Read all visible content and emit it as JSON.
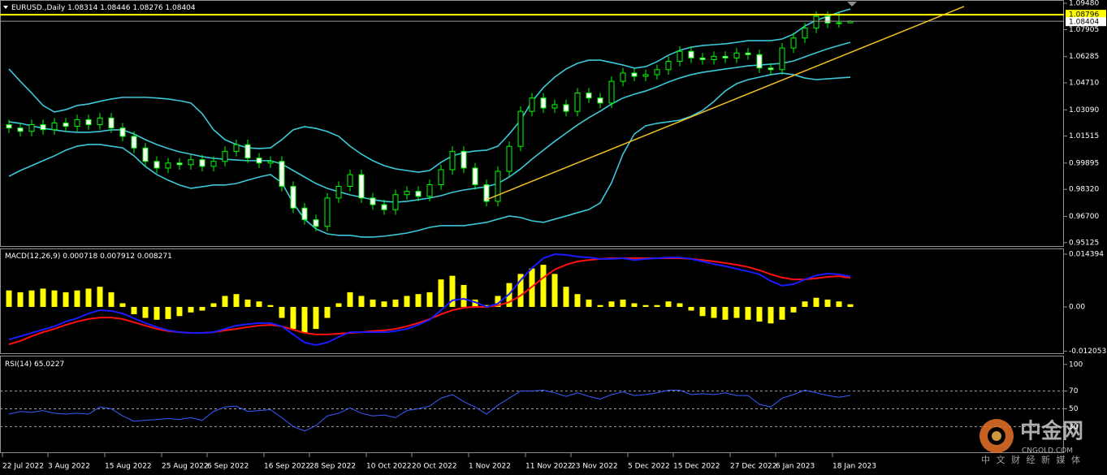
{
  "chart_data": {
    "type": "candlestick",
    "title": "EURUSD.,Daily",
    "categories": [
      "22 Jul 2022",
      null,
      null,
      null,
      "3 Aug 2022",
      null,
      null,
      null,
      null,
      "15 Aug 2022",
      null,
      null,
      null,
      null,
      "25 Aug 2022",
      null,
      null,
      null,
      "6 Sep 2022",
      null,
      null,
      null,
      null,
      "16 Sep 2022",
      null,
      null,
      null,
      "28 Sep 2022",
      null,
      null,
      null,
      null,
      "10 Oct 2022",
      null,
      null,
      null,
      "20 Oct 2022",
      null,
      null,
      null,
      null,
      "1 Nov 2022",
      null,
      null,
      null,
      null,
      "11 Nov 2022",
      null,
      null,
      null,
      "23 Nov 2022",
      null,
      null,
      null,
      null,
      "5 Dec 2022",
      null,
      null,
      null,
      "15 Dec 2022",
      null,
      null,
      null,
      null,
      "27 Dec 2022",
      null,
      null,
      null,
      "6 Jan 2023",
      null,
      null,
      null,
      null,
      "18 Jan 2023",
      null
    ],
    "open": [
      1.022,
      1.02,
      1.018,
      1.022,
      1.019,
      1.023,
      1.021,
      1.025,
      1.022,
      1.026,
      1.02,
      1.015,
      1.008,
      1.0,
      0.996,
      0.999,
      0.998,
      1.001,
      0.997,
      1.0,
      1.006,
      1.01,
      1.002,
      0.999,
      1.0,
      0.985,
      0.972,
      0.965,
      0.961,
      0.978,
      0.985,
      0.992,
      0.978,
      0.974,
      0.971,
      0.98,
      0.982,
      0.979,
      0.986,
      0.995,
      1.006,
      0.996,
      0.986,
      0.976,
      0.994,
      1.009,
      1.03,
      1.038,
      1.032,
      1.034,
      1.03,
      1.041,
      1.038,
      1.035,
      1.048,
      1.053,
      1.051,
      1.052,
      1.055,
      1.06,
      1.066,
      1.062,
      1.061,
      1.063,
      1.062,
      1.065,
      1.064,
      1.056,
      1.055,
      1.068,
      1.074,
      1.08,
      1.087,
      1.083,
      1.08314
    ],
    "high": [
      1.025,
      1.023,
      1.025,
      1.025,
      1.026,
      1.026,
      1.028,
      1.028,
      1.029,
      1.029,
      1.023,
      1.018,
      1.011,
      1.003,
      1.002,
      1.002,
      1.004,
      1.004,
      1.003,
      1.009,
      1.013,
      1.013,
      1.005,
      1.003,
      1.003,
      0.988,
      0.975,
      0.968,
      0.981,
      0.988,
      0.995,
      0.995,
      0.981,
      0.977,
      0.983,
      0.985,
      0.985,
      0.989,
      0.998,
      1.009,
      1.009,
      0.999,
      0.989,
      0.997,
      1.012,
      1.033,
      1.041,
      1.041,
      1.037,
      1.037,
      1.044,
      1.044,
      1.041,
      1.051,
      1.056,
      1.056,
      1.055,
      1.058,
      1.063,
      1.069,
      1.069,
      1.065,
      1.066,
      1.066,
      1.068,
      1.068,
      1.067,
      1.059,
      1.071,
      1.077,
      1.083,
      1.09,
      1.09,
      1.09,
      1.08446
    ],
    "low": [
      1.017,
      1.015,
      1.015,
      1.016,
      1.016,
      1.018,
      1.018,
      1.019,
      1.019,
      1.017,
      1.012,
      1.005,
      0.997,
      0.993,
      0.993,
      0.995,
      0.995,
      0.994,
      0.994,
      0.997,
      1.003,
      0.999,
      0.996,
      0.996,
      0.982,
      0.969,
      0.962,
      0.958,
      0.958,
      0.975,
      0.982,
      0.975,
      0.971,
      0.968,
      0.968,
      0.977,
      0.976,
      0.976,
      0.983,
      0.992,
      0.993,
      0.983,
      0.973,
      0.973,
      0.991,
      1.006,
      1.027,
      1.029,
      1.029,
      1.027,
      1.027,
      1.035,
      1.032,
      1.032,
      1.045,
      1.048,
      1.048,
      1.049,
      1.052,
      1.057,
      1.059,
      1.058,
      1.058,
      1.059,
      1.059,
      1.061,
      1.053,
      1.052,
      1.052,
      1.065,
      1.071,
      1.077,
      1.08,
      1.08014,
      1.08276
    ],
    "close": [
      1.02,
      1.018,
      1.022,
      1.019,
      1.023,
      1.021,
      1.025,
      1.022,
      1.026,
      1.02,
      1.015,
      1.008,
      1.0,
      0.996,
      0.999,
      0.998,
      1.001,
      0.997,
      1.0,
      1.006,
      1.01,
      1.002,
      0.999,
      1.0,
      0.985,
      0.972,
      0.965,
      0.961,
      0.978,
      0.985,
      0.992,
      0.978,
      0.974,
      0.971,
      0.98,
      0.982,
      0.979,
      0.986,
      0.995,
      1.006,
      0.996,
      0.986,
      0.976,
      0.994,
      1.009,
      1.03,
      1.038,
      1.032,
      1.034,
      1.03,
      1.041,
      1.038,
      1.035,
      1.048,
      1.053,
      1.051,
      1.052,
      1.055,
      1.06,
      1.066,
      1.062,
      1.061,
      1.063,
      1.062,
      1.065,
      1.064,
      1.056,
      1.055,
      1.068,
      1.074,
      1.08,
      1.087,
      1.083,
      1.08314,
      1.08404
    ],
    "wick_color": "#00ff00",
    "up_color": "#000000",
    "down_color": "#ffffff",
    "bollinger": {
      "color": "#3cc8d8",
      "upper": [
        1.0554,
        1.048,
        1.041,
        1.0335,
        1.0296,
        1.031,
        1.0335,
        1.0344,
        1.036,
        1.0374,
        1.0384,
        1.0384,
        1.0384,
        1.038,
        1.0374,
        1.0364,
        1.035,
        1.0286,
        1.0189,
        1.013,
        1.0101,
        1.0081,
        1.0077,
        1.0081,
        1.013,
        1.0189,
        1.0208,
        1.0198,
        1.0179,
        1.015,
        1.0091,
        1.0043,
        1.0004,
        0.9974,
        0.9955,
        0.9945,
        0.9935,
        0.9945,
        0.9994,
        1.0033,
        1.0052,
        1.0062,
        1.0067,
        1.0091,
        1.0164,
        1.0247,
        1.0359,
        1.0442,
        1.0505,
        1.0554,
        1.0588,
        1.0607,
        1.0607,
        1.0593,
        1.0578,
        1.0559,
        1.0568,
        1.0598,
        1.0637,
        1.0666,
        1.0685,
        1.0695,
        1.07,
        1.0705,
        1.0714,
        1.0724,
        1.0724,
        1.0724,
        1.0734,
        1.0763,
        1.0812,
        1.0846,
        1.087,
        1.0894,
        1.0914
      ],
      "middle": [
        1.0237,
        1.0228,
        1.0213,
        1.0198,
        1.0189,
        1.0179,
        1.0174,
        1.0174,
        1.0179,
        1.0189,
        1.0189,
        1.0164,
        1.013,
        1.0101,
        1.0077,
        1.0057,
        1.0043,
        1.0028,
        1.0018,
        1.0013,
        1.0008,
        1.0004,
        1.0004,
        1.0004,
        0.9984,
        0.9945,
        0.9906,
        0.9867,
        0.9838,
        0.9818,
        0.9799,
        0.9785,
        0.977,
        0.976,
        0.9755,
        0.976,
        0.977,
        0.978,
        0.9794,
        0.9814,
        0.9828,
        0.9838,
        0.9848,
        0.9867,
        0.9906,
        0.9955,
        1.0013,
        1.0067,
        1.012,
        1.0169,
        1.0218,
        1.0262,
        1.0301,
        1.0344,
        1.038,
        1.0403,
        1.0422,
        1.0447,
        1.0476,
        1.05,
        1.052,
        1.0534,
        1.0544,
        1.0554,
        1.0563,
        1.0573,
        1.0578,
        1.0583,
        1.0588,
        1.0602,
        1.0627,
        1.0651,
        1.0675,
        1.0695,
        1.0714
      ],
      "lower": [
        0.991,
        0.9945,
        0.9974,
        1.0004,
        1.0033,
        1.0067,
        1.0091,
        1.0101,
        1.0101,
        1.0091,
        1.0081,
        1.0033,
        0.9969,
        0.9921,
        0.9887,
        0.9858,
        0.9838,
        0.9848,
        0.9858,
        0.9858,
        0.9867,
        0.9887,
        0.9906,
        0.9921,
        0.9872,
        0.975,
        0.9653,
        0.9595,
        0.9565,
        0.9556,
        0.9556,
        0.9546,
        0.9546,
        0.9551,
        0.956,
        0.957,
        0.9585,
        0.9604,
        0.9614,
        0.9614,
        0.9614,
        0.9624,
        0.9634,
        0.9653,
        0.9672,
        0.9663,
        0.9643,
        0.9634,
        0.9653,
        0.9672,
        0.9692,
        0.9711,
        0.975,
        0.9872,
        1.0043,
        1.0164,
        1.0213,
        1.0228,
        1.0237,
        1.0247,
        1.0271,
        1.0305,
        1.0359,
        1.0422,
        1.0466,
        1.049,
        1.0505,
        1.052,
        1.0529,
        1.052,
        1.05,
        1.049,
        1.0495,
        1.05,
        1.0505
      ]
    },
    "hline": 1.08796,
    "hline_color": "#ffff00",
    "trendline": {
      "x": [
        42,
        84
      ],
      "y": [
        0.977,
        1.0929
      ],
      "color": "#f0c020"
    },
    "ylim": [
      0.9492,
      1.0963
    ],
    "yticks": [
      {
        "value": 1.0948,
        "label": "1.09480"
      },
      1.07905,
      1.06285,
      {
        "value": 1.0471,
        "label": "1.04710"
      },
      {
        "value": 1.0309,
        "label": "1.03090"
      },
      1.01515,
      0.99895,
      {
        "value": 0.9832,
        "label": "0.98320"
      },
      {
        "value": 0.967,
        "label": "0.96700"
      },
      0.95125
    ],
    "macd": {
      "title": "MACD(12,26,9)",
      "hist_color": "#ffff00",
      "macd_color": "#1a1aff",
      "signal_color": "#ff1010",
      "hist": [
        0.0045,
        0.004,
        0.0045,
        0.005,
        0.0045,
        0.004,
        0.0045,
        0.005,
        0.0055,
        0.004,
        0.001,
        -0.002,
        -0.003,
        -0.0035,
        -0.0033,
        -0.0025,
        -0.0015,
        -0.001,
        0.001,
        0.003,
        0.0035,
        0.002,
        0.0015,
        0.0005,
        -0.003,
        -0.006,
        -0.007,
        -0.006,
        -0.003,
        0.001,
        0.004,
        0.003,
        0.002,
        0.0015,
        0.002,
        0.003,
        0.0035,
        0.004,
        0.0075,
        0.0085,
        0.006,
        0.002,
        0.0005,
        0.003,
        0.0065,
        0.009,
        0.0105,
        0.0115,
        0.009,
        0.0055,
        0.0035,
        0.002,
        0.0005,
        0.0015,
        0.002,
        0.001,
        0.0005,
        0.0005,
        0.0015,
        0.001,
        -0.001,
        -0.0025,
        -0.003,
        -0.0035,
        -0.003,
        -0.0035,
        -0.004,
        -0.0045,
        -0.0035,
        -0.0015,
        0.0015,
        0.0025,
        0.002,
        0.0015,
        0.000718
      ],
      "signal": [
        -0.0102,
        -0.0093,
        -0.008,
        -0.0069,
        -0.006,
        -0.0049,
        -0.004,
        -0.0033,
        -0.0029,
        -0.0029,
        -0.0033,
        -0.0042,
        -0.0051,
        -0.006,
        -0.0066,
        -0.0069,
        -0.0071,
        -0.0071,
        -0.0069,
        -0.0064,
        -0.006,
        -0.0055,
        -0.0051,
        -0.0049,
        -0.0053,
        -0.0062,
        -0.0071,
        -0.0075,
        -0.0075,
        -0.0073,
        -0.0071,
        -0.0069,
        -0.0066,
        -0.0064,
        -0.006,
        -0.0053,
        -0.0044,
        -0.0033,
        -0.002,
        -0.0009,
        -0.0002,
        0,
        0,
        0.0004,
        0.0013,
        0.0031,
        0.0055,
        0.008,
        0.0102,
        0.0115,
        0.0124,
        0.0128,
        0.0131,
        0.0133,
        0.0133,
        0.0133,
        0.0133,
        0.0133,
        0.0133,
        0.0133,
        0.0131,
        0.0128,
        0.0124,
        0.012,
        0.0115,
        0.0109,
        0.01,
        0.0089,
        0.008,
        0.0075,
        0.0075,
        0.0078,
        0.0082,
        0.0084,
        0.007912
      ],
      "macd": [
        -0.0089,
        -0.008,
        -0.0071,
        -0.0062,
        -0.0053,
        -0.004,
        -0.0031,
        -0.0018,
        -0.0009,
        -0.0011,
        -0.0018,
        -0.0031,
        -0.0044,
        -0.0055,
        -0.0064,
        -0.0069,
        -0.0071,
        -0.0071,
        -0.0069,
        -0.006,
        -0.0051,
        -0.0047,
        -0.0044,
        -0.0044,
        -0.0053,
        -0.0075,
        -0.0097,
        -0.0104,
        -0.0097,
        -0.0082,
        -0.0069,
        -0.0069,
        -0.0069,
        -0.0069,
        -0.0066,
        -0.006,
        -0.0049,
        -0.0035,
        -0.0009,
        0.0018,
        0.0022,
        0.0013,
        0,
        0.0009,
        0.0035,
        0.0073,
        0.0106,
        0.0133,
        0.0144,
        0.0142,
        0.0137,
        0.0135,
        0.0131,
        0.0131,
        0.0133,
        0.0128,
        0.0131,
        0.0133,
        0.0135,
        0.0135,
        0.0131,
        0.0124,
        0.0117,
        0.0111,
        0.0104,
        0.0097,
        0.0089,
        0.0071,
        0.0058,
        0.0062,
        0.0075,
        0.0086,
        0.0091,
        0.0089,
        0.008271
      ],
      "ylim": [
        -0.01263,
        0.01573
      ],
      "yticks": [
        0.014394,
        {
          "value": 0,
          "label": "0.00"
        },
        -0.012053
      ]
    },
    "rsi": {
      "title": "RSI(14)",
      "color": "#3a5cff",
      "level_color": "#a0a0a0",
      "values": [
        44,
        47,
        46,
        48,
        45,
        44,
        45,
        44,
        52,
        50,
        42,
        36,
        37,
        38,
        39,
        38,
        40,
        37,
        47,
        52,
        53,
        47,
        48,
        49,
        40,
        30,
        25,
        31,
        42,
        45,
        51,
        45,
        42,
        43,
        40,
        48,
        50,
        53,
        62,
        66,
        58,
        52,
        44,
        54,
        62,
        70,
        70,
        71,
        68,
        64,
        68,
        64,
        61,
        66,
        69,
        65,
        66,
        68,
        71,
        71,
        66,
        67,
        66,
        68,
        65,
        65,
        55,
        52,
        62,
        66,
        71,
        68,
        65,
        63,
        65.0227
      ],
      "levels": [
        70,
        50,
        30
      ],
      "ylim": [
        1,
        109
      ],
      "yticks": [
        100,
        70,
        50,
        30
      ]
    },
    "watermark": {
      "brand": "中金网",
      "site": "CNGOLD.COM",
      "slogan": "中 文 财 经 新 媒 体"
    }
  }
}
